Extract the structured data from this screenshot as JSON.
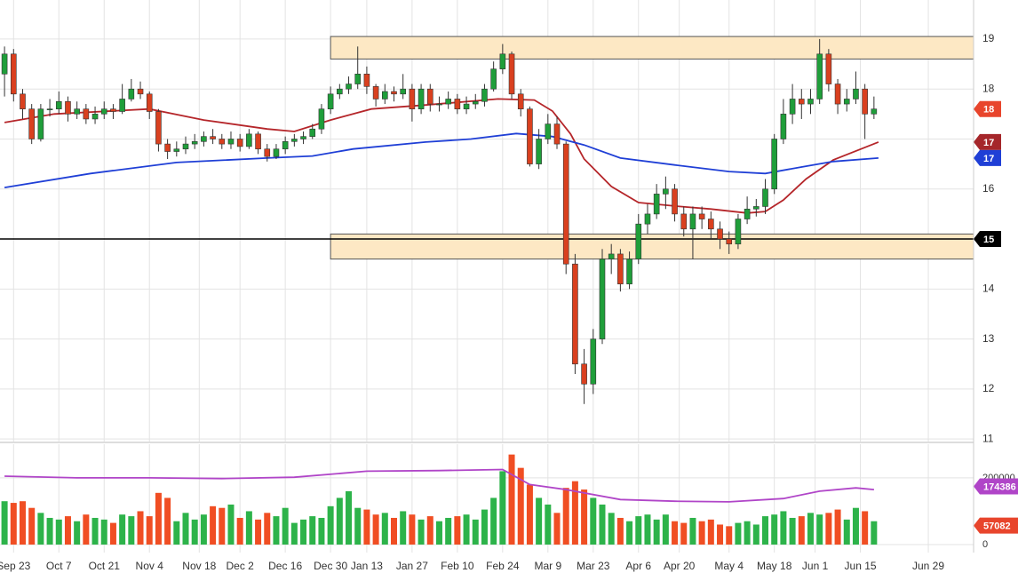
{
  "chart_data": [
    {
      "type": "candlestick",
      "x": [
        0,
        2,
        4,
        6,
        8,
        10,
        12,
        14,
        16,
        18,
        20,
        22,
        24,
        26,
        28,
        30,
        32,
        34,
        36,
        38,
        40,
        42,
        44,
        46,
        48,
        50,
        52,
        54,
        56,
        58,
        60,
        62,
        64,
        66,
        68,
        70,
        72,
        74,
        76,
        78,
        80,
        82,
        84,
        86,
        88,
        90,
        92,
        94,
        96,
        98,
        100,
        102,
        104,
        106,
        108,
        110,
        112,
        114,
        116,
        118,
        120,
        122,
        124,
        126,
        128,
        130,
        132,
        134,
        136,
        138,
        140,
        142,
        144,
        146,
        148,
        150,
        152,
        154,
        156,
        158,
        160,
        162,
        164,
        166,
        168,
        170,
        172,
        174,
        176,
        178,
        180,
        182,
        184,
        186,
        188,
        190,
        192
      ],
      "open": [
        18.3,
        18.7,
        17.9,
        17.6,
        17.0,
        17.6,
        17.6,
        17.75,
        17.5,
        17.6,
        17.4,
        17.5,
        17.6,
        17.55,
        17.8,
        18.0,
        17.9,
        17.55,
        16.9,
        16.75,
        16.8,
        16.9,
        16.95,
        17.05,
        17.0,
        16.9,
        17.0,
        16.85,
        17.1,
        16.8,
        16.65,
        16.8,
        16.95,
        17.0,
        17.05,
        17.2,
        17.6,
        17.9,
        18.0,
        18.1,
        18.3,
        18.05,
        17.8,
        17.95,
        17.9,
        18.0,
        17.6,
        18.0,
        17.7,
        17.7,
        17.8,
        17.6,
        17.7,
        17.75,
        18.0,
        18.4,
        18.7,
        17.9,
        17.6,
        16.5,
        17.0,
        17.3,
        16.9,
        14.5,
        12.5,
        12.1,
        13.0,
        14.6,
        14.7,
        14.1,
        14.6,
        15.3,
        15.5,
        15.9,
        16.0,
        15.5,
        15.2,
        15.5,
        15.4,
        15.2,
        15.0,
        14.9,
        15.4,
        15.6,
        15.65,
        16.0,
        17.0,
        17.5,
        17.8,
        17.7,
        17.8,
        18.7,
        18.1,
        17.7,
        17.8,
        18.0,
        17.5
      ],
      "high": [
        18.85,
        18.8,
        18.0,
        17.7,
        17.7,
        17.8,
        17.95,
        17.85,
        17.75,
        17.7,
        17.65,
        17.75,
        17.7,
        18.1,
        18.2,
        18.15,
        17.95,
        17.6,
        17.0,
        16.95,
        17.05,
        17.1,
        17.15,
        17.2,
        17.1,
        17.15,
        17.1,
        17.2,
        17.15,
        16.9,
        16.9,
        17.05,
        17.1,
        17.15,
        17.3,
        17.7,
        18.05,
        18.1,
        18.25,
        18.85,
        18.45,
        18.1,
        18.1,
        18.05,
        18.3,
        18.1,
        18.1,
        18.1,
        17.85,
        17.95,
        17.9,
        17.85,
        17.9,
        18.1,
        18.55,
        18.9,
        18.75,
        18.0,
        17.65,
        17.2,
        17.5,
        17.45,
        16.95,
        14.7,
        12.8,
        13.2,
        14.8,
        14.9,
        14.8,
        14.75,
        15.5,
        15.7,
        16.1,
        16.25,
        16.1,
        15.65,
        15.65,
        15.65,
        15.55,
        15.35,
        15.15,
        15.5,
        15.85,
        15.8,
        16.2,
        17.1,
        17.8,
        18.1,
        18.0,
        18.0,
        19.0,
        18.8,
        18.2,
        18.0,
        18.35,
        18.1,
        17.85
      ],
      "low": [
        17.85,
        17.75,
        17.4,
        16.9,
        16.95,
        17.45,
        17.5,
        17.35,
        17.4,
        17.3,
        17.3,
        17.4,
        17.4,
        17.5,
        17.75,
        17.8,
        17.4,
        16.75,
        16.6,
        16.65,
        16.7,
        16.8,
        16.85,
        16.9,
        16.8,
        16.8,
        16.75,
        16.8,
        16.7,
        16.55,
        16.6,
        16.7,
        16.85,
        16.9,
        17.0,
        17.1,
        17.5,
        17.8,
        17.9,
        18.0,
        17.9,
        17.65,
        17.7,
        17.75,
        17.8,
        17.35,
        17.5,
        17.55,
        17.55,
        17.6,
        17.5,
        17.5,
        17.6,
        17.65,
        17.95,
        18.3,
        17.8,
        17.45,
        16.45,
        16.4,
        16.9,
        16.8,
        14.3,
        12.3,
        11.7,
        11.9,
        12.9,
        14.3,
        13.95,
        14.0,
        14.5,
        15.1,
        15.4,
        15.6,
        15.35,
        15.05,
        14.6,
        15.2,
        15.0,
        14.8,
        14.7,
        14.8,
        15.3,
        15.45,
        15.5,
        15.9,
        16.9,
        17.3,
        17.4,
        17.5,
        17.7,
        17.95,
        17.5,
        17.55,
        17.7,
        17.0,
        17.4
      ],
      "close": [
        18.7,
        17.9,
        17.6,
        17.0,
        17.6,
        17.6,
        17.75,
        17.5,
        17.6,
        17.4,
        17.5,
        17.6,
        17.55,
        17.8,
        18.0,
        17.9,
        17.55,
        16.9,
        16.75,
        16.8,
        16.9,
        16.95,
        17.05,
        17.0,
        16.9,
        17.0,
        16.85,
        17.1,
        16.8,
        16.65,
        16.8,
        16.95,
        17.0,
        17.05,
        17.2,
        17.6,
        17.9,
        18.0,
        18.1,
        18.3,
        18.05,
        17.8,
        17.95,
        17.9,
        18.0,
        17.6,
        18.0,
        17.7,
        17.7,
        17.8,
        17.6,
        17.7,
        17.75,
        18.0,
        18.4,
        18.7,
        17.9,
        17.6,
        16.5,
        17.0,
        17.3,
        16.9,
        14.5,
        12.5,
        12.1,
        13.0,
        14.6,
        14.7,
        14.1,
        14.6,
        15.3,
        15.5,
        15.9,
        16.0,
        15.5,
        15.2,
        15.5,
        15.4,
        15.2,
        15.0,
        14.9,
        15.4,
        15.6,
        15.65,
        16.0,
        17.0,
        17.5,
        17.8,
        17.7,
        17.8,
        18.7,
        18.1,
        17.7,
        17.8,
        18.0,
        17.5,
        17.6
      ],
      "up_color": "#1f9e3a",
      "down_color": "#d9401f",
      "lines": [
        {
          "color": "#b5262a",
          "x": [
            0,
            11,
            32,
            44,
            58,
            64,
            72,
            81,
            93,
            109,
            117,
            121,
            125,
            128,
            134,
            140,
            148,
            156,
            164,
            168,
            172,
            177,
            183,
            193
          ],
          "values": [
            17.33,
            17.5,
            17.6,
            17.38,
            17.2,
            17.15,
            17.38,
            17.6,
            17.68,
            17.8,
            17.78,
            17.56,
            17.1,
            16.6,
            16.05,
            15.73,
            15.66,
            15.6,
            15.52,
            15.55,
            15.78,
            16.2,
            16.58,
            16.94
          ]
        },
        {
          "color": "#1f3fd6",
          "x": [
            0,
            19,
            38,
            58,
            68,
            77,
            93,
            103,
            113,
            121,
            128,
            136,
            148,
            160,
            168,
            176,
            183,
            193
          ],
          "values": [
            16.03,
            16.31,
            16.53,
            16.62,
            16.66,
            16.8,
            16.94,
            17.0,
            17.11,
            17.05,
            16.88,
            16.62,
            16.48,
            16.35,
            16.31,
            16.44,
            16.55,
            16.62
          ]
        }
      ],
      "bands": [
        {
          "low": 18.6,
          "high": 19.05,
          "x_start": 72
        },
        {
          "low": 14.6,
          "high": 15.1,
          "x_start": 72
        }
      ],
      "band_color": "#fde8c4",
      "hline": 15,
      "tags": [
        {
          "value": 17.6,
          "label": "18",
          "color": "#e8452c"
        },
        {
          "value": 16.94,
          "label": "17",
          "color": "#a5262a"
        },
        {
          "value": 16.62,
          "label": "17",
          "color": "#1f3fd6"
        },
        {
          "value": 15,
          "label": "15",
          "color": "#000000"
        }
      ],
      "xlim": [
        -1,
        214
      ],
      "ylim": [
        10.95,
        19.78
      ],
      "yticks": [
        11,
        12,
        13,
        14,
        15,
        16,
        17,
        18,
        19
      ],
      "xticks": [
        {
          "value": 2,
          "label": "Sep 23"
        },
        {
          "value": 12,
          "label": "Oct 7"
        },
        {
          "value": 22,
          "label": "Oct 21"
        },
        {
          "value": 32,
          "label": "Nov 4"
        },
        {
          "value": 43,
          "label": "Nov 18"
        },
        {
          "value": 52,
          "label": "Dec 2"
        },
        {
          "value": 62,
          "label": "Dec 16"
        },
        {
          "value": 72,
          "label": "Dec 30"
        },
        {
          "value": 80,
          "label": "Jan 13"
        },
        {
          "value": 90,
          "label": "Jan 27"
        },
        {
          "value": 100,
          "label": "Feb 10"
        },
        {
          "value": 110,
          "label": "Feb 24"
        },
        {
          "value": 120,
          "label": "Mar 9"
        },
        {
          "value": 130,
          "label": "Mar 23"
        },
        {
          "value": 140,
          "label": "Apr 6"
        },
        {
          "value": 149,
          "label": "Apr 20"
        },
        {
          "value": 160,
          "label": "May 4"
        },
        {
          "value": 170,
          "label": "May 18"
        },
        {
          "value": 179,
          "label": "Jun 1"
        },
        {
          "value": 189,
          "label": "Jun 15"
        },
        {
          "value": 204,
          "label": "Jun 29"
        }
      ],
      "grid": true
    },
    {
      "type": "bar",
      "values": [
        130000,
        125000,
        130000,
        110000,
        95000,
        80000,
        75000,
        85000,
        70000,
        90000,
        80000,
        75000,
        65000,
        90000,
        85000,
        100000,
        85000,
        155000,
        140000,
        70000,
        95000,
        75000,
        90000,
        115000,
        110000,
        120000,
        80000,
        100000,
        75000,
        95000,
        85000,
        110000,
        65000,
        75000,
        85000,
        80000,
        115000,
        140000,
        160000,
        110000,
        105000,
        90000,
        95000,
        80000,
        100000,
        90000,
        75000,
        85000,
        70000,
        80000,
        85000,
        90000,
        75000,
        105000,
        140000,
        220000,
        270000,
        230000,
        180000,
        140000,
        120000,
        95000,
        170000,
        190000,
        165000,
        140000,
        120000,
        95000,
        80000,
        70000,
        85000,
        90000,
        75000,
        90000,
        70000,
        65000,
        80000,
        70000,
        75000,
        60000,
        55000,
        65000,
        70000,
        60000,
        85000,
        90000,
        100000,
        80000,
        85000,
        95000,
        90000,
        95000,
        105000,
        75000,
        110000,
        100000,
        70000
      ],
      "up_color": "#2db34a",
      "down_color": "#f04e23",
      "line": {
        "color": "#b045c8",
        "x": [
          0,
          16,
          32,
          48,
          64,
          80,
          96,
          110,
          116,
          124,
          136,
          148,
          160,
          172,
          180,
          188,
          192
        ],
        "values": [
          205000,
          200000,
          200000,
          198000,
          202000,
          220000,
          222000,
          225000,
          180000,
          165000,
          135000,
          130000,
          128000,
          138000,
          160000,
          170000,
          165000
        ]
      },
      "tags": [
        {
          "value": 174386,
          "color": "#b045c8"
        },
        {
          "value": 57082,
          "color": "#e8452c"
        }
      ],
      "ylim": [
        -24000,
        301000
      ],
      "yticks": [
        0,
        200000
      ],
      "grid": true
    }
  ]
}
